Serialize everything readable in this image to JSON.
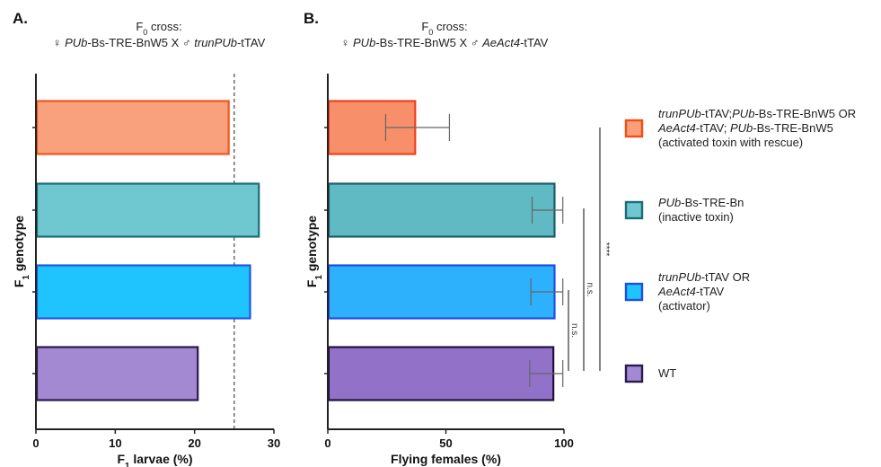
{
  "chart_data": [
    {
      "panel": "A.",
      "type": "bar",
      "orientation": "horizontal",
      "title_line1": {
        "prefix": "F",
        "sub": "0",
        "suffix": " cross:"
      },
      "title_line2": [
        {
          "text": "♀ ",
          "italic": false
        },
        {
          "text": "PUb",
          "italic": true
        },
        {
          "text": "-Bs-TRE-BnW5 X ♂ ",
          "italic": false
        },
        {
          "text": "trunPUb",
          "italic": true
        },
        {
          "text": "-tTAV",
          "italic": false
        }
      ],
      "xlabel": {
        "prefix": "F",
        "sub": "1",
        "suffix": " larvae (%)"
      },
      "ylabel": {
        "prefix": "F",
        "sub": "1",
        "suffix": " genotype"
      },
      "xlim": [
        0,
        30
      ],
      "xticks": [
        0,
        10,
        20,
        30
      ],
      "reference_line": {
        "value": 25,
        "style": "dashed"
      },
      "categories": [
        "activated toxin with rescue",
        "inactive toxin",
        "activator",
        "WT"
      ],
      "values": [
        24.3,
        28.1,
        27.0,
        20.4
      ]
    },
    {
      "panel": "B.",
      "type": "bar",
      "orientation": "horizontal",
      "title_line1": {
        "prefix": "F",
        "sub": "0",
        "suffix": " cross:"
      },
      "title_line2": [
        {
          "text": "♀ ",
          "italic": false
        },
        {
          "text": "PUb",
          "italic": true
        },
        {
          "text": "-Bs-TRE-BnW5 X ♂ ",
          "italic": false
        },
        {
          "text": "AeAct4",
          "italic": true
        },
        {
          "text": "-tTAV",
          "italic": false
        }
      ],
      "xlabel": {
        "prefix": "",
        "sub": "",
        "suffix": "Flying females (%)"
      },
      "ylabel": {
        "prefix": "F",
        "sub": "1",
        "suffix": " genotype"
      },
      "xlim": [
        0,
        100
      ],
      "xticks": [
        0,
        50,
        100
      ],
      "categories": [
        "activated toxin with rescue",
        "inactive toxin",
        "activator",
        "WT"
      ],
      "values": [
        37,
        96,
        96,
        95.5
      ],
      "error_bars": [
        {
          "low": 24.5,
          "high": 51.5
        },
        {
          "low": 86.5,
          "high": 99.5
        },
        {
          "low": 86,
          "high": 99.5
        },
        {
          "low": 85.5,
          "high": 99.5
        }
      ],
      "significance": [
        {
          "from": "activator",
          "to": "WT",
          "label": "n.s."
        },
        {
          "from": "inactive toxin",
          "to": "WT",
          "label": "n.s."
        },
        {
          "from": "activated toxin with rescue",
          "to": "WT",
          "label": "****"
        }
      ]
    }
  ],
  "series_styles": {
    "A": [
      {
        "fill": "#f9a07c",
        "stroke": "#f0561c"
      },
      {
        "fill": "#6fc7cf",
        "stroke": "#1b6e78"
      },
      {
        "fill": "#1fc4fe",
        "stroke": "#1f5be0"
      },
      {
        "fill": "#a389d2",
        "stroke": "#2b1a4f"
      }
    ],
    "B": [
      {
        "fill": "#f7906a",
        "stroke": "#f0401c"
      },
      {
        "fill": "#5fbac3",
        "stroke": "#1b5e6a"
      },
      {
        "fill": "#2db1fd",
        "stroke": "#1f4fe0"
      },
      {
        "fill": "#9172c8",
        "stroke": "#22123f"
      }
    ]
  },
  "legend": [
    {
      "fill": "#fa9e7c",
      "stroke": "#f54d14",
      "lines": [
        [
          {
            "text": "trunPUb",
            "italic": true
          },
          {
            "text": "-tTAV;",
            "italic": false
          },
          {
            "text": "PUb",
            "italic": true
          },
          {
            "text": "-Bs-TRE-BnW5 OR",
            "italic": false
          }
        ],
        [
          {
            "text": "AeAct4",
            "italic": true
          },
          {
            "text": "-tTAV; ",
            "italic": false
          },
          {
            "text": "PUb",
            "italic": true
          },
          {
            "text": "-Bs-TRE-BnW5",
            "italic": false
          }
        ],
        [
          {
            "text": "(activated toxin with rescue)",
            "italic": false
          }
        ]
      ]
    },
    {
      "fill": "#6fc7cf",
      "stroke": "#1b6e78",
      "lines": [
        [
          {
            "text": "PUb",
            "italic": true
          },
          {
            "text": "-Bs-TRE-Bn",
            "italic": false
          }
        ],
        [
          {
            "text": "(inactive toxin)",
            "italic": false
          }
        ]
      ]
    },
    {
      "fill": "#1fc4fe",
      "stroke": "#1f4fe0",
      "lines": [
        [
          {
            "text": "trunPUb",
            "italic": true
          },
          {
            "text": "-tTAV OR",
            "italic": false
          }
        ],
        [
          {
            "text": "AeAct4",
            "italic": true
          },
          {
            "text": "-tTAV",
            "italic": false
          }
        ],
        [
          {
            "text": "(activator)",
            "italic": false
          }
        ]
      ]
    },
    {
      "fill": "#a389d2",
      "stroke": "#2b1a4f",
      "lines": [
        [
          {
            "text": "WT",
            "italic": false
          }
        ]
      ]
    }
  ]
}
